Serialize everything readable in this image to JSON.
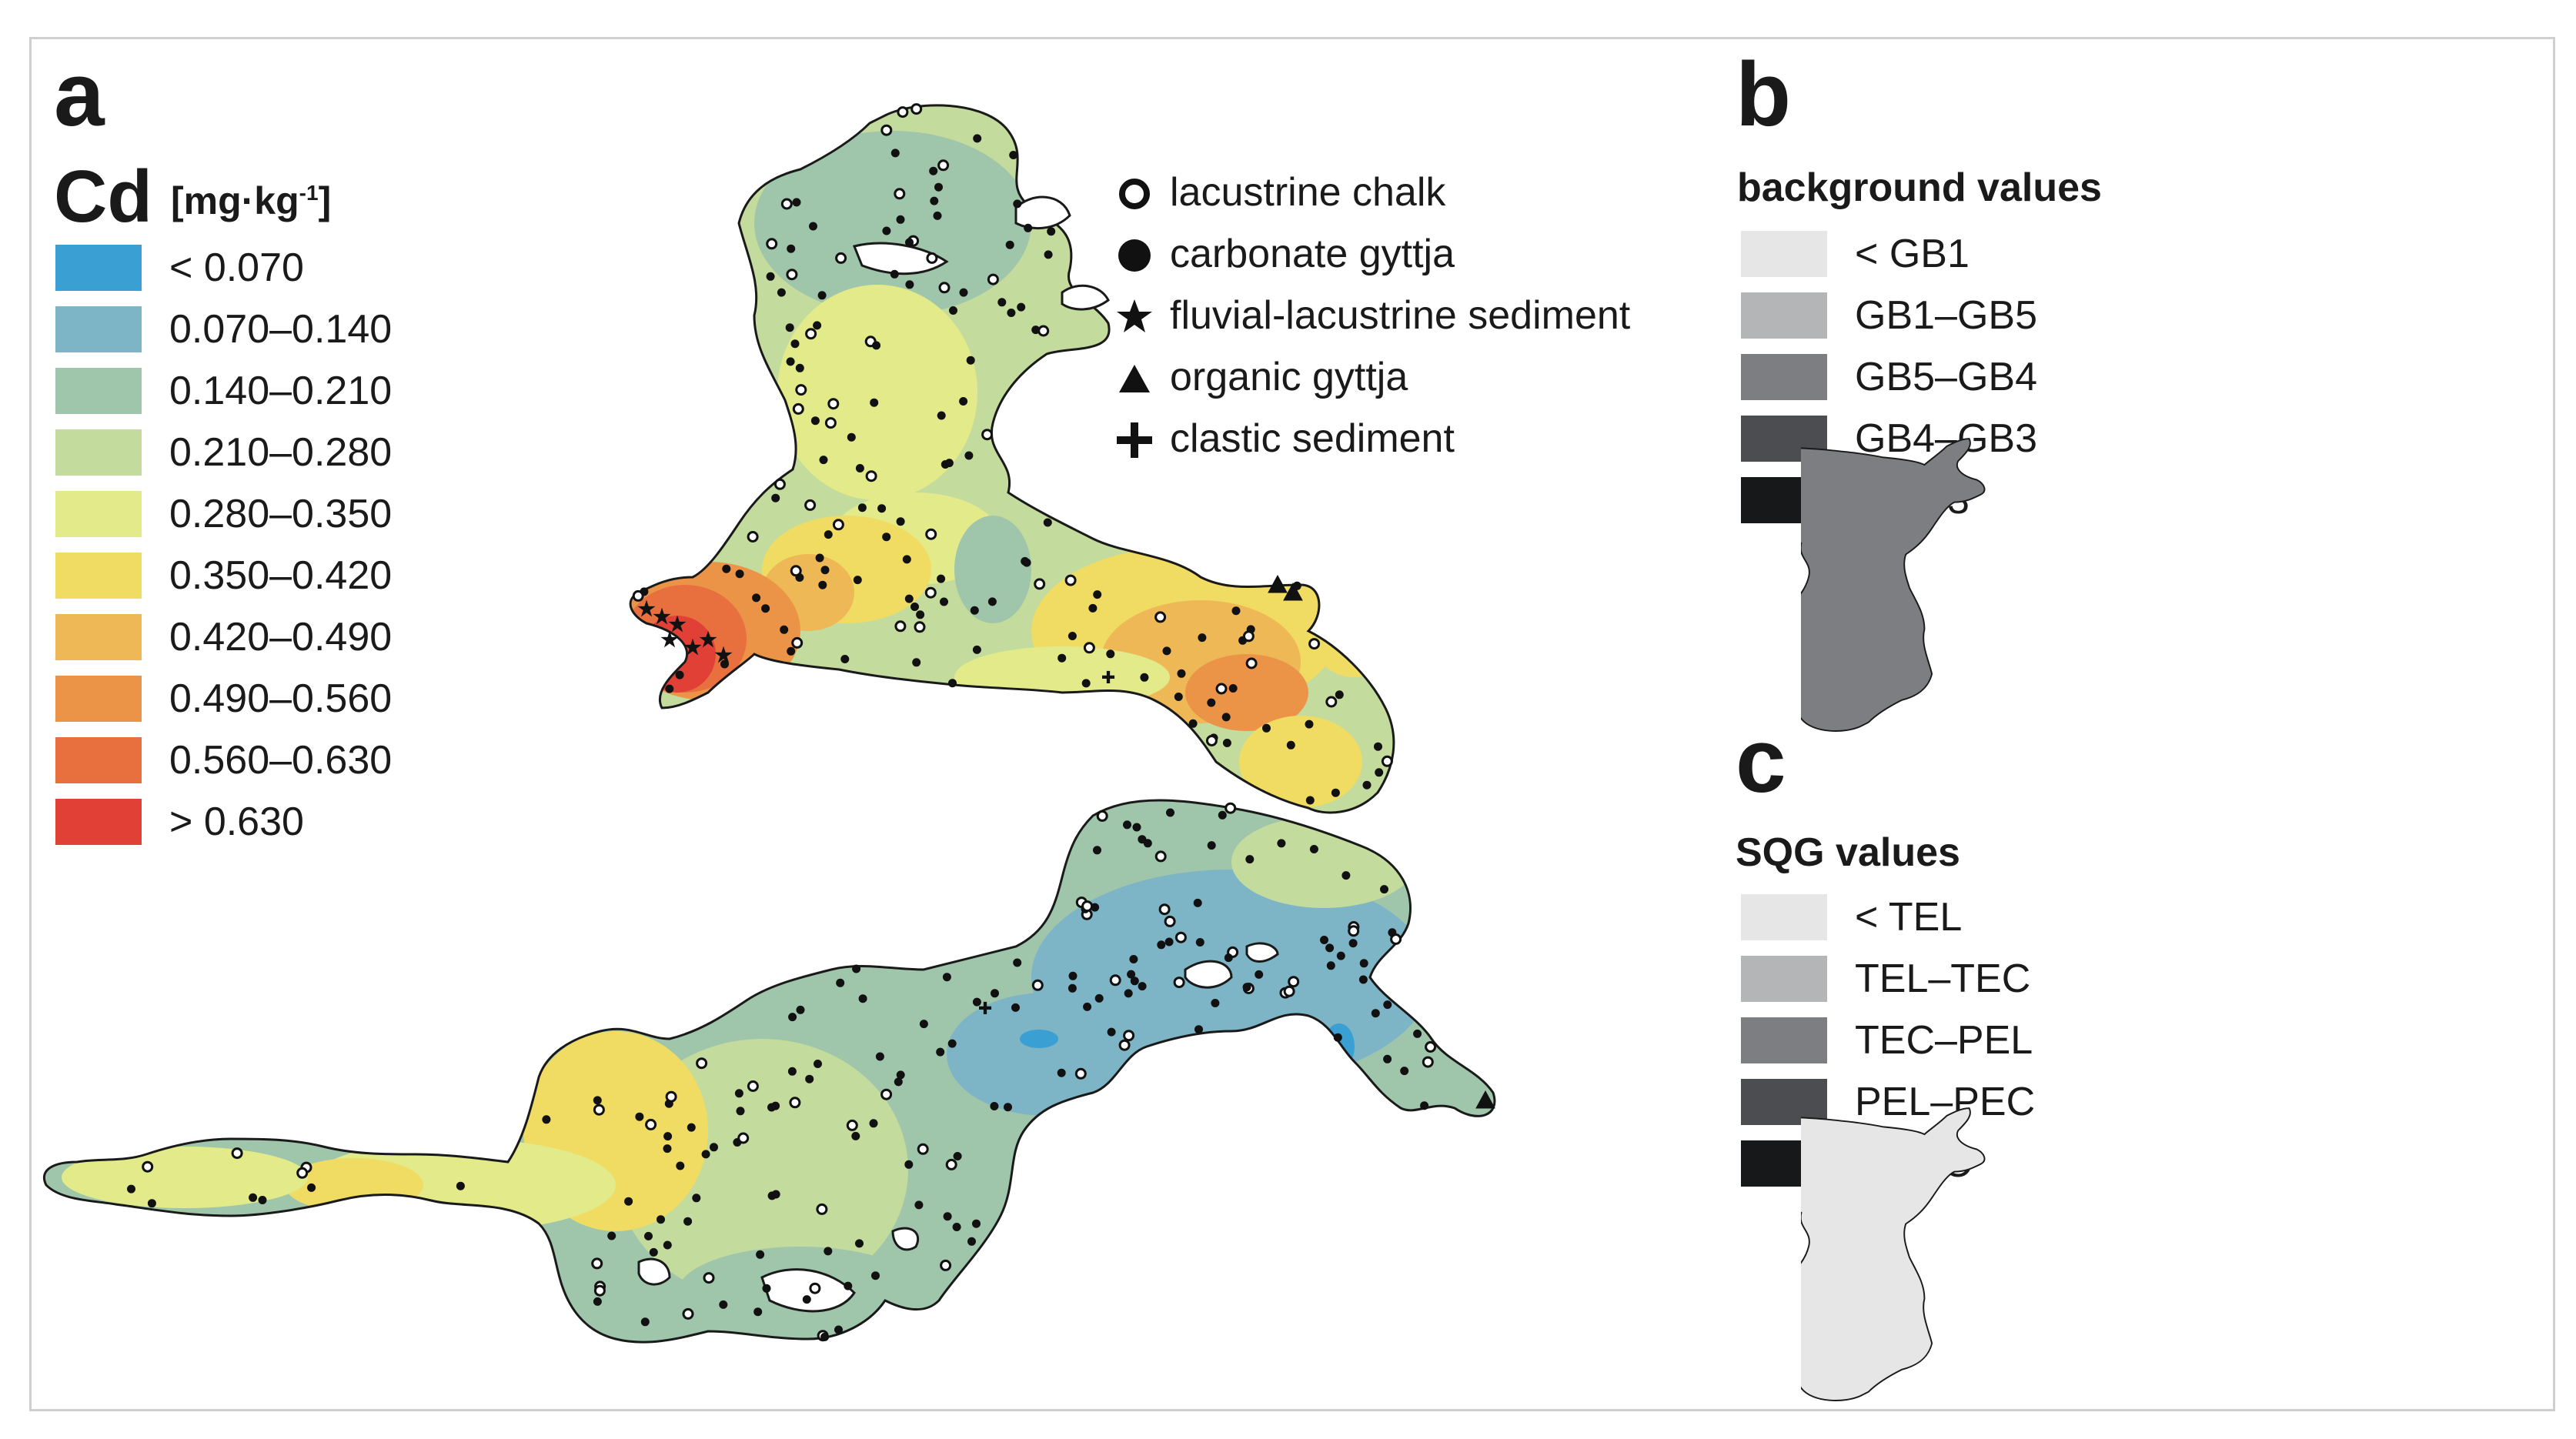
{
  "panels": {
    "a": {
      "letter": "a",
      "element_symbol": "Cd",
      "unit_main": "[mg·kg",
      "unit_sup": "-1",
      "unit_close": "]",
      "classes": [
        {
          "label": "< 0.070",
          "color": "#3a9fd2"
        },
        {
          "label": "0.070–0.140",
          "color": "#7db4c6"
        },
        {
          "label": "0.140–0.210",
          "color": "#9fc5aa"
        },
        {
          "label": "0.210–0.280",
          "color": "#c3db9c"
        },
        {
          "label": "0.280–0.350",
          "color": "#e2ea8a"
        },
        {
          "label": "0.350–0.420",
          "color": "#f0dc62"
        },
        {
          "label": "0.420–0.490",
          "color": "#efb856"
        },
        {
          "label": "0.490–0.560",
          "color": "#eb9447"
        },
        {
          "label": "0.560–0.630",
          "color": "#e8703f"
        },
        {
          "label": "> 0.630",
          "color": "#e04035"
        }
      ],
      "sample_types": [
        {
          "label": "lacustrine chalk",
          "icon": "open-circle-icon"
        },
        {
          "label": "carbonate gyttja",
          "icon": "filled-circle-icon"
        },
        {
          "label": "fluvial-lacustrine sediment",
          "icon": "star-icon"
        },
        {
          "label": "organic gyttja",
          "icon": "triangle-icon"
        },
        {
          "label": "clastic sediment",
          "icon": "cross-icon"
        }
      ]
    },
    "b": {
      "letter": "b",
      "title": "background values",
      "classes": [
        {
          "label": "< GB1",
          "color": "#e6e6e7"
        },
        {
          "label": "GB1–GB5",
          "color": "#b4b5b7"
        },
        {
          "label": "GB5–GB4",
          "color": "#7c7e82"
        },
        {
          "label": "GB4–GB3",
          "color": "#4b4d51"
        },
        {
          "label": "> GB3",
          "color": "#17181a"
        }
      ]
    },
    "c": {
      "letter": "c",
      "title": "SQG values",
      "classes": [
        {
          "label": "< TEL",
          "color": "#e6e6e7"
        },
        {
          "label": "TEL–TEC",
          "color": "#b4b5b7"
        },
        {
          "label": "TEC–PEL",
          "color": "#7c7e82"
        },
        {
          "label": "PEL–PEC",
          "color": "#4b4d51"
        },
        {
          "label": "> PEC",
          "color": "#17181a"
        }
      ]
    }
  }
}
